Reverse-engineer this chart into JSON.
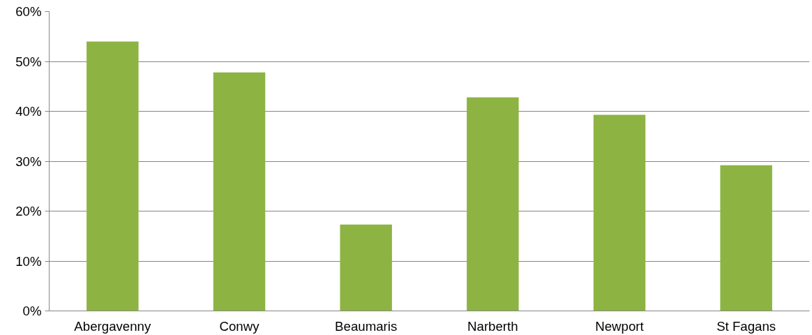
{
  "chart_data": {
    "type": "bar",
    "categories": [
      "Abergavenny",
      "Conwy",
      "Beaumaris",
      "Narberth",
      "Newport",
      "St Fagans"
    ],
    "values": [
      54,
      47.8,
      17.3,
      42.8,
      39.3,
      29.2
    ],
    "color": "#8db443",
    "ylim": [
      0,
      60
    ],
    "yticks": [
      {
        "value": 0,
        "label": "0%"
      },
      {
        "value": 10,
        "label": "10%"
      },
      {
        "value": 20,
        "label": "20%"
      },
      {
        "value": 30,
        "label": "30%"
      },
      {
        "value": 40,
        "label": "40%"
      },
      {
        "value": 50,
        "label": "50%"
      },
      {
        "value": 60,
        "label": "60%"
      }
    ],
    "grid": "y"
  }
}
